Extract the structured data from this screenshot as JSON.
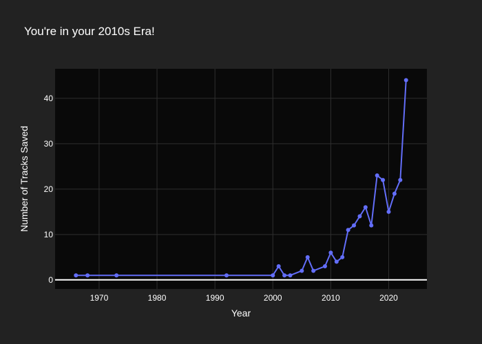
{
  "chart_data": {
    "type": "line",
    "title": "You're in your 2010s Era!",
    "xlabel": "Year",
    "ylabel": "Number of Tracks Saved",
    "xlim": [
      1962.4,
      2026.6
    ],
    "ylim": [
      -2,
      46.5
    ],
    "x_ticks": [
      1970,
      1980,
      1990,
      2000,
      2010,
      2020
    ],
    "y_ticks": [
      0,
      10,
      20,
      30,
      40
    ],
    "grid": true,
    "x": [
      1966,
      1968,
      1973,
      1992,
      2000,
      2001,
      2002,
      2003,
      2005,
      2006,
      2007,
      2009,
      2010,
      2011,
      2012,
      2013,
      2014,
      2015,
      2016,
      2017,
      2018,
      2019,
      2020,
      2021,
      2022,
      2023
    ],
    "y": [
      1,
      1,
      1,
      1,
      1,
      3,
      1,
      1,
      2,
      5,
      2,
      3,
      6,
      4,
      5,
      11,
      12,
      14,
      16,
      12,
      23,
      22,
      15,
      19,
      22,
      44
    ],
    "colors": {
      "paper": "#222222",
      "plot_bg": "#090909",
      "grid": "#2f2f2f",
      "zeroline": "#ffffff",
      "series": "#636efa",
      "text": "#ffffff"
    }
  }
}
